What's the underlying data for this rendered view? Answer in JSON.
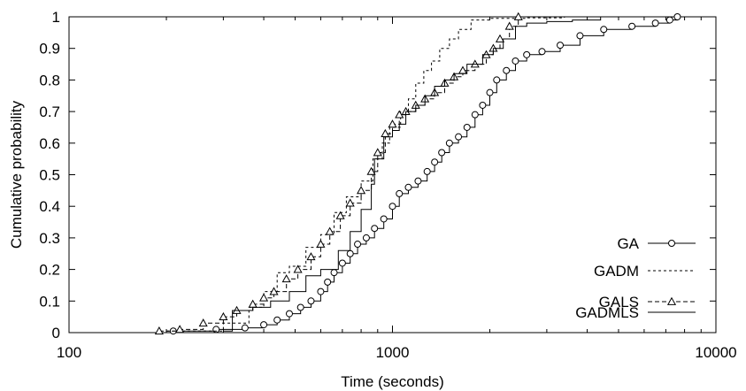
{
  "chart_data": {
    "type": "line",
    "xlabel": "Time (seconds)",
    "ylabel": "Cumulative probability",
    "xscale": "log",
    "xlim": [
      100,
      10000
    ],
    "ylim": [
      0,
      1
    ],
    "xticks": [
      100,
      1000,
      10000
    ],
    "xtick_labels": [
      "100",
      "1000",
      "10000"
    ],
    "yticks": [
      0,
      0.1,
      0.2,
      0.3,
      0.4,
      0.5,
      0.6,
      0.7,
      0.8,
      0.9,
      1
    ],
    "ytick_labels": [
      "0",
      "0.1",
      "0.2",
      "0.3",
      "0.4",
      "0.5",
      "0.6",
      "0.7",
      "0.8",
      "0.9",
      "1"
    ],
    "grid": false,
    "legend_position": "bottom-right",
    "series": [
      {
        "name": "GA",
        "line_style": "solid",
        "marker": "circle",
        "color": "#000000",
        "points": [
          [
            210,
            0.005
          ],
          [
            285,
            0.01
          ],
          [
            350,
            0.015
          ],
          [
            400,
            0.025
          ],
          [
            440,
            0.04
          ],
          [
            480,
            0.06
          ],
          [
            520,
            0.08
          ],
          [
            560,
            0.1
          ],
          [
            600,
            0.13
          ],
          [
            630,
            0.16
          ],
          [
            660,
            0.19
          ],
          [
            700,
            0.22
          ],
          [
            740,
            0.25
          ],
          [
            780,
            0.28
          ],
          [
            830,
            0.3
          ],
          [
            880,
            0.33
          ],
          [
            940,
            0.36
          ],
          [
            1000,
            0.4
          ],
          [
            1050,
            0.44
          ],
          [
            1120,
            0.46
          ],
          [
            1200,
            0.48
          ],
          [
            1280,
            0.51
          ],
          [
            1350,
            0.54
          ],
          [
            1420,
            0.57
          ],
          [
            1500,
            0.6
          ],
          [
            1600,
            0.62
          ],
          [
            1700,
            0.65
          ],
          [
            1800,
            0.69
          ],
          [
            1900,
            0.72
          ],
          [
            2000,
            0.76
          ],
          [
            2100,
            0.8
          ],
          [
            2250,
            0.83
          ],
          [
            2400,
            0.86
          ],
          [
            2600,
            0.88
          ],
          [
            2900,
            0.89
          ],
          [
            3300,
            0.91
          ],
          [
            3800,
            0.94
          ],
          [
            4500,
            0.96
          ],
          [
            5500,
            0.97
          ],
          [
            6500,
            0.98
          ],
          [
            7200,
            0.99
          ],
          [
            7600,
            1.0
          ]
        ]
      },
      {
        "name": "GADM",
        "line_style": "dashed",
        "marker": "none",
        "color": "#000000",
        "points": [
          [
            200,
            0.005
          ],
          [
            300,
            0.03
          ],
          [
            360,
            0.08
          ],
          [
            400,
            0.13
          ],
          [
            440,
            0.19
          ],
          [
            480,
            0.21
          ],
          [
            540,
            0.27
          ],
          [
            600,
            0.31
          ],
          [
            660,
            0.38
          ],
          [
            720,
            0.43
          ],
          [
            800,
            0.48
          ],
          [
            870,
            0.55
          ],
          [
            930,
            0.6
          ],
          [
            980,
            0.65
          ],
          [
            1060,
            0.7
          ],
          [
            1120,
            0.74
          ],
          [
            1180,
            0.79
          ],
          [
            1250,
            0.83
          ],
          [
            1320,
            0.86
          ],
          [
            1400,
            0.9
          ],
          [
            1500,
            0.93
          ],
          [
            1600,
            0.96
          ],
          [
            1750,
            0.99
          ],
          [
            2000,
            0.995
          ],
          [
            2600,
            0.997
          ],
          [
            3400,
            1.0
          ]
        ]
      },
      {
        "name": "GALS",
        "line_style": "dashed",
        "marker": "triangle",
        "color": "#000000",
        "points": [
          [
            190,
            0.005
          ],
          [
            220,
            0.01
          ],
          [
            260,
            0.03
          ],
          [
            300,
            0.05
          ],
          [
            330,
            0.07
          ],
          [
            370,
            0.09
          ],
          [
            400,
            0.11
          ],
          [
            430,
            0.13
          ],
          [
            470,
            0.17
          ],
          [
            510,
            0.2
          ],
          [
            560,
            0.24
          ],
          [
            600,
            0.28
          ],
          [
            640,
            0.32
          ],
          [
            690,
            0.37
          ],
          [
            740,
            0.41
          ],
          [
            800,
            0.45
          ],
          [
            860,
            0.51
          ],
          [
            900,
            0.57
          ],
          [
            950,
            0.63
          ],
          [
            1000,
            0.66
          ],
          [
            1050,
            0.69
          ],
          [
            1100,
            0.7
          ],
          [
            1180,
            0.72
          ],
          [
            1260,
            0.74
          ],
          [
            1350,
            0.76
          ],
          [
            1450,
            0.79
          ],
          [
            1550,
            0.81
          ],
          [
            1650,
            0.83
          ],
          [
            1800,
            0.85
          ],
          [
            1950,
            0.88
          ],
          [
            2050,
            0.9
          ],
          [
            2150,
            0.93
          ],
          [
            2300,
            0.97
          ],
          [
            2450,
            1.0
          ]
        ]
      },
      {
        "name": "GADMLS",
        "line_style": "solid",
        "marker": "none",
        "color": "#000000",
        "points": [
          [
            300,
            0.005
          ],
          [
            320,
            0.07
          ],
          [
            370,
            0.08
          ],
          [
            420,
            0.1
          ],
          [
            480,
            0.13
          ],
          [
            540,
            0.18
          ],
          [
            600,
            0.2
          ],
          [
            680,
            0.26
          ],
          [
            740,
            0.32
          ],
          [
            800,
            0.39
          ],
          [
            860,
            0.47
          ],
          [
            880,
            0.55
          ],
          [
            930,
            0.55
          ],
          [
            940,
            0.62
          ],
          [
            1000,
            0.64
          ],
          [
            1050,
            0.66
          ],
          [
            1100,
            0.7
          ],
          [
            1180,
            0.72
          ],
          [
            1260,
            0.75
          ],
          [
            1350,
            0.78
          ],
          [
            1450,
            0.8
          ],
          [
            1550,
            0.82
          ],
          [
            1700,
            0.85
          ],
          [
            1800,
            0.85
          ],
          [
            1900,
            0.88
          ],
          [
            2050,
            0.9
          ],
          [
            2200,
            0.93
          ],
          [
            2400,
            0.97
          ],
          [
            2600,
            0.98
          ],
          [
            3000,
            0.985
          ],
          [
            3600,
            0.99
          ],
          [
            4400,
            1.0
          ]
        ]
      }
    ]
  }
}
